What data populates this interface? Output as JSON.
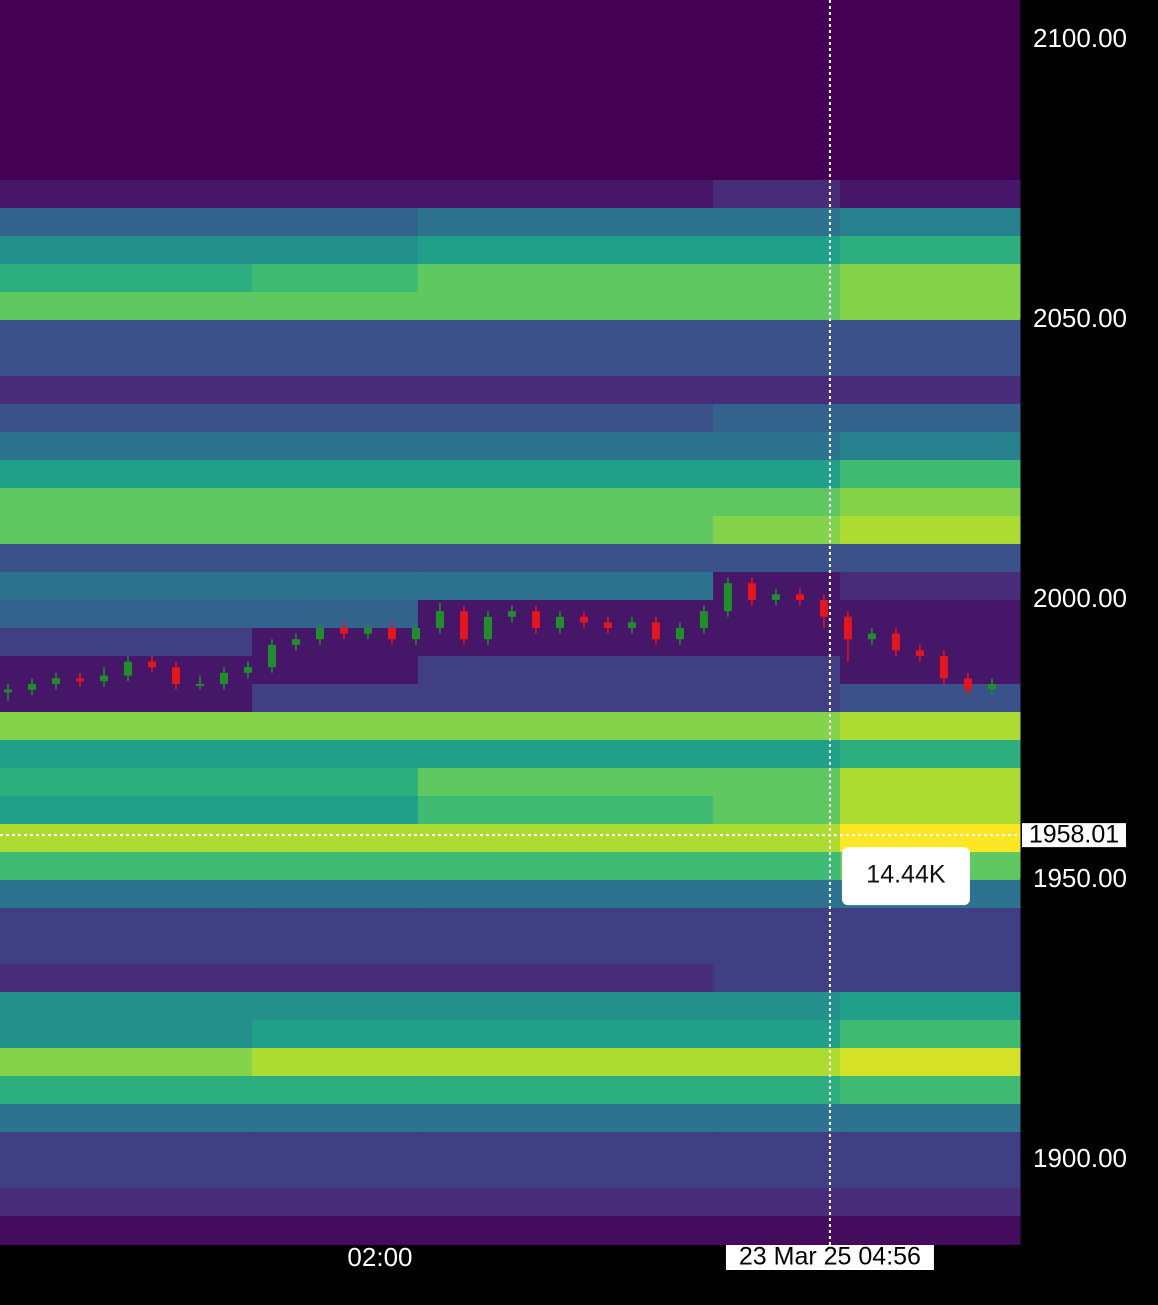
{
  "chart_data": {
    "type": "heatmap",
    "colormap": "viridis",
    "zlim": [
      0,
      16
    ],
    "ylim": [
      1884.82,
      2107.14
    ],
    "yticks": [
      {
        "value": 2100,
        "label": "2100.00"
      },
      {
        "value": 2050,
        "label": "2050.00"
      },
      {
        "value": 2000,
        "label": "2000.00"
      },
      {
        "value": 1950,
        "label": "1950.00"
      },
      {
        "value": 1900,
        "label": "1900.00"
      }
    ],
    "xlim": [
      -0.333,
      42.17
    ],
    "xticks": [
      {
        "value": 15.5,
        "label": "02:00"
      }
    ],
    "time_edges": [
      -0.333,
      10.17,
      17.08,
      29.38,
      34.67,
      42.17
    ],
    "price_bins": [
      2075,
      2070,
      2065,
      2060,
      2055,
      2050,
      2045,
      2040,
      2035,
      2030,
      2025,
      2020,
      2015,
      2010,
      2005,
      2000,
      1995,
      1990,
      1985,
      1980,
      1975,
      1970,
      1965,
      1960,
      1955,
      1950,
      1945,
      1940,
      1935,
      1930,
      1925,
      1920,
      1915,
      1910,
      1905,
      1900,
      1895,
      1890,
      1885
    ],
    "heat": [
      [
        1,
        1,
        1,
        2,
        1
      ],
      [
        5,
        5,
        6,
        6,
        7
      ],
      [
        8,
        8,
        9,
        9,
        10
      ],
      [
        10,
        11,
        12,
        12,
        13
      ],
      [
        12,
        12,
        12,
        12,
        13
      ],
      [
        4,
        4,
        4,
        4,
        4
      ],
      [
        4,
        4,
        4,
        4,
        4
      ],
      [
        2,
        2,
        2,
        2,
        2
      ],
      [
        4,
        4,
        4,
        5,
        5
      ],
      [
        6,
        6,
        6,
        6,
        7
      ],
      [
        9,
        9,
        9,
        9,
        11
      ],
      [
        12,
        12,
        12,
        12,
        13
      ],
      [
        12,
        12,
        12,
        13,
        14
      ],
      [
        4,
        4,
        4,
        4,
        4
      ],
      [
        6,
        6,
        6,
        1,
        2
      ],
      [
        5,
        5,
        1,
        1,
        1
      ],
      [
        3,
        1,
        1,
        1,
        1
      ],
      [
        1,
        1,
        3,
        3,
        1
      ],
      [
        1,
        3,
        3,
        3,
        4
      ],
      [
        13,
        13,
        13,
        13,
        14
      ],
      [
        9,
        9,
        9,
        9,
        10
      ],
      [
        10,
        10,
        12,
        12,
        14
      ],
      [
        9,
        9,
        11,
        12,
        14
      ],
      [
        14,
        14,
        14,
        14,
        16
      ],
      [
        11,
        11,
        11,
        11,
        12
      ],
      [
        6,
        6,
        6,
        6,
        6
      ],
      [
        3,
        3,
        3,
        3,
        3
      ],
      [
        3,
        3,
        3,
        3,
        3
      ],
      [
        2,
        2,
        2,
        3,
        3
      ],
      [
        8,
        8,
        8,
        8,
        9
      ],
      [
        8,
        9,
        9,
        9,
        11
      ],
      [
        13,
        14,
        14,
        14,
        15
      ],
      [
        10,
        10,
        10,
        10,
        11
      ],
      [
        6,
        6,
        6,
        6,
        6
      ],
      [
        3,
        3,
        3,
        3,
        3
      ],
      [
        3,
        3,
        3,
        3,
        3
      ],
      [
        2,
        2,
        2,
        2,
        2
      ],
      [
        0.5,
        0.5,
        0.5,
        0.5,
        0.5
      ]
    ],
    "candles": {
      "up_color": "#1f8f2a",
      "down_color": "#e8141b",
      "x": [
        0,
        1,
        2,
        3,
        4,
        5,
        6,
        7,
        8,
        9,
        10,
        11,
        12,
        13,
        14,
        15,
        16,
        17,
        18,
        19,
        20,
        21,
        22,
        23,
        24,
        25,
        26,
        27,
        28,
        29,
        30,
        31,
        32,
        33,
        34,
        35,
        36,
        37,
        38,
        39,
        40,
        41
      ],
      "open": [
        1983.5,
        1984,
        1985,
        1986,
        1985.5,
        1986.5,
        1989,
        1988,
        1985,
        1985,
        1987,
        1988,
        1992,
        1993,
        1995,
        1994,
        1995,
        1993,
        1995,
        1998,
        1993,
        1997,
        1998,
        1995,
        1997,
        1996,
        1995,
        1996,
        1993,
        1995,
        1998,
        2003,
        2000,
        2001,
        2000,
        1997,
        1993,
        1994,
        1991,
        1990,
        1986,
        1984
      ],
      "high": [
        1985,
        1986,
        1987,
        1987,
        1988,
        1990,
        1990,
        1989,
        1986.5,
        1988,
        1989,
        1993,
        1994,
        1996,
        1996,
        1996,
        1996,
        1996,
        1999.5,
        1999,
        1998,
        1999,
        1999,
        1998,
        1998,
        1997,
        1997,
        1997,
        1996,
        1999,
        2004,
        2004,
        2002,
        2002,
        2001,
        1998,
        1995,
        1995,
        1992,
        1991,
        1987,
        1986
      ],
      "low": [
        1982,
        1983,
        1984,
        1984.5,
        1984.5,
        1985.5,
        1987,
        1984,
        1984,
        1984,
        1986,
        1987,
        1991,
        1992,
        1993,
        1993,
        1992,
        1992,
        1994,
        1992,
        1992,
        1996,
        1994,
        1994,
        1995,
        1994,
        1994,
        1992,
        1992,
        1994,
        1997,
        1999,
        1999,
        1999,
        1995,
        1989,
        1992,
        1990,
        1989,
        1985,
        1983,
        1983
      ],
      "close": [
        1984,
        1985,
        1986,
        1985.5,
        1986.5,
        1989,
        1988,
        1985,
        1985,
        1987,
        1988,
        1992,
        1993,
        1995,
        1994,
        1995,
        1993,
        1995,
        1998,
        1993,
        1997,
        1998,
        1995,
        1997,
        1996,
        1995,
        1996,
        1993,
        1995,
        1998,
        2003,
        2000,
        2001,
        2000,
        1997,
        1993,
        1994,
        1991,
        1990,
        1986,
        1984,
        1985
      ]
    },
    "crosshair": {
      "x": 34.25,
      "x_label": "23 Mar 25 04:56",
      "y": 1958.01,
      "tooltip": {
        "value": 14.44,
        "label": "14.44K"
      }
    }
  }
}
